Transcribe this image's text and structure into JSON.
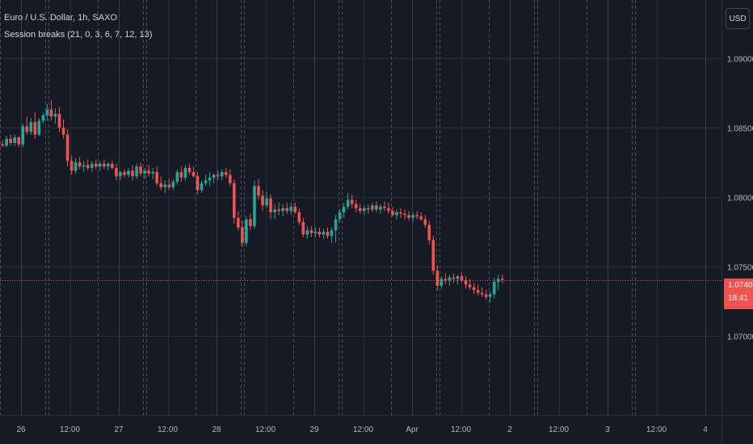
{
  "header": {
    "symbol_title": "Euro / U.S. Dollar, 1h, SAXO",
    "indicator_label": "Session breaks (21, 0, 3, 6, 7, 12, 13)"
  },
  "toolbar": {
    "currency_button": "USD"
  },
  "last_price": {
    "value": "1.07402",
    "countdown": "18:41"
  },
  "colors": {
    "background": "#161a25",
    "up": "#26a69a",
    "down": "#ef5350",
    "grid": "#2a2e39",
    "session_line": "#4a4e59",
    "price_line": "#f0524f",
    "axis_text": "#b2b5be"
  },
  "chart_data": {
    "type": "candlestick",
    "title": "Euro / U.S. Dollar, 1h, SAXO",
    "y_ticks": [
      1.09,
      1.085,
      1.08,
      1.075,
      1.07
    ],
    "y_tick_labels": [
      "1.09000",
      "1.08500",
      "1.08000",
      "1.07500",
      "1.07000"
    ],
    "ylim": [
      1.0643,
      1.0942
    ],
    "x_tick_labels": [
      "26",
      "12:00",
      "27",
      "12:00",
      "28",
      "12:00",
      "29",
      "12:00",
      "Apr",
      "12:00",
      "2",
      "12:00",
      "3",
      "12:00",
      "4"
    ],
    "last_price": 1.07402,
    "candles_per_day": 24,
    "session_breaks": true,
    "candles": [
      [
        1.0838,
        1.0843,
        1.0835,
        1.084
      ],
      [
        1.084,
        1.0841,
        1.0834,
        1.0836
      ],
      [
        1.0836,
        1.084,
        1.0834,
        1.0838
      ],
      [
        1.0838,
        1.0841,
        1.0836,
        1.0837
      ],
      [
        1.0837,
        1.0844,
        1.0836,
        1.0842
      ],
      [
        1.0842,
        1.0845,
        1.0837,
        1.0839
      ],
      [
        1.0839,
        1.0845,
        1.0837,
        1.0843
      ],
      [
        1.0843,
        1.0844,
        1.0836,
        1.0838
      ],
      [
        1.0838,
        1.0853,
        1.0836,
        1.0851
      ],
      [
        1.0851,
        1.0858,
        1.0845,
        1.0847
      ],
      [
        1.0847,
        1.0857,
        1.0845,
        1.0854
      ],
      [
        1.0854,
        1.0861,
        1.0842,
        1.0845
      ],
      [
        1.0845,
        1.0857,
        1.0844,
        1.0855
      ],
      [
        1.0855,
        1.0861,
        1.0853,
        1.0859
      ],
      [
        1.0859,
        1.0867,
        1.0855,
        1.0863
      ],
      [
        1.0863,
        1.087,
        1.0855,
        1.0858
      ],
      [
        1.0858,
        1.0864,
        1.0853,
        1.086
      ],
      [
        1.086,
        1.0865,
        1.0847,
        1.085
      ],
      [
        1.085,
        1.0856,
        1.0842,
        1.0845
      ],
      [
        1.0845,
        1.0849,
        1.0822,
        1.0826
      ],
      [
        1.0826,
        1.083,
        1.0816,
        1.0819
      ],
      [
        1.0819,
        1.0828,
        1.0817,
        1.0825
      ],
      [
        1.0825,
        1.0829,
        1.082,
        1.0822
      ],
      [
        1.0822,
        1.0826,
        1.0818,
        1.0823
      ],
      [
        1.0823,
        1.0827,
        1.0819,
        1.0821
      ],
      [
        1.0821,
        1.0826,
        1.0818,
        1.0824
      ],
      [
        1.0824,
        1.0827,
        1.082,
        1.0822
      ],
      [
        1.0822,
        1.0826,
        1.0819,
        1.0824
      ],
      [
        1.0824,
        1.0827,
        1.082,
        1.0822
      ],
      [
        1.0822,
        1.0825,
        1.0819,
        1.0824
      ],
      [
        1.0824,
        1.0826,
        1.082,
        1.0821
      ],
      [
        1.0821,
        1.0824,
        1.0812,
        1.0815
      ],
      [
        1.0815,
        1.0819,
        1.0812,
        1.0818
      ],
      [
        1.0818,
        1.082,
        1.0814,
        1.0816
      ],
      [
        1.0816,
        1.0821,
        1.0814,
        1.0819
      ],
      [
        1.0819,
        1.0823,
        1.0812,
        1.0815
      ],
      [
        1.0815,
        1.0824,
        1.0813,
        1.0822
      ],
      [
        1.0822,
        1.0825,
        1.0815,
        1.0817
      ],
      [
        1.0817,
        1.0821,
        1.0813,
        1.0819
      ],
      [
        1.0819,
        1.0823,
        1.0815,
        1.0817
      ],
      [
        1.0817,
        1.0821,
        1.0813,
        1.0818
      ],
      [
        1.0818,
        1.0822,
        1.0808,
        1.081
      ],
      [
        1.081,
        1.0815,
        1.0805,
        1.0807
      ],
      [
        1.0807,
        1.0812,
        1.0803,
        1.0809
      ],
      [
        1.0809,
        1.0813,
        1.0805,
        1.0807
      ],
      [
        1.0807,
        1.0813,
        1.0805,
        1.0811
      ],
      [
        1.0811,
        1.082,
        1.0809,
        1.0818
      ],
      [
        1.0818,
        1.0822,
        1.0811,
        1.0814
      ],
      [
        1.0814,
        1.0823,
        1.0812,
        1.0821
      ],
      [
        1.0821,
        1.0824,
        1.0816,
        1.0818
      ],
      [
        1.0818,
        1.0822,
        1.0814,
        1.0815
      ],
      [
        1.0815,
        1.0818,
        1.0802,
        1.0805
      ],
      [
        1.0805,
        1.0812,
        1.0803,
        1.081
      ],
      [
        1.081,
        1.0816,
        1.0808,
        1.0812
      ],
      [
        1.0812,
        1.0818,
        1.0808,
        1.0814
      ],
      [
        1.0814,
        1.0817,
        1.081,
        1.0816
      ],
      [
        1.0816,
        1.0819,
        1.0812,
        1.0815
      ],
      [
        1.0815,
        1.082,
        1.0812,
        1.0818
      ],
      [
        1.0818,
        1.0821,
        1.0814,
        1.0816
      ],
      [
        1.0816,
        1.082,
        1.0808,
        1.081
      ],
      [
        1.081,
        1.0813,
        1.0781,
        1.0785
      ],
      [
        1.0785,
        1.079,
        1.0776,
        1.0778
      ],
      [
        1.0778,
        1.0783,
        1.0764,
        1.0767
      ],
      [
        1.0767,
        1.0786,
        1.0765,
        1.0784
      ],
      [
        1.0784,
        1.0788,
        1.0776,
        1.0779
      ],
      [
        1.0779,
        1.0812,
        1.0777,
        1.0808
      ],
      [
        1.0808,
        1.0813,
        1.0798,
        1.0801
      ],
      [
        1.0801,
        1.0805,
        1.079,
        1.0794
      ],
      [
        1.0794,
        1.0804,
        1.0792,
        1.0799
      ],
      [
        1.0799,
        1.0802,
        1.0784,
        1.0789
      ],
      [
        1.0789,
        1.0795,
        1.0784,
        1.0791
      ],
      [
        1.0791,
        1.0796,
        1.0787,
        1.079
      ],
      [
        1.079,
        1.0795,
        1.0786,
        1.0792
      ],
      [
        1.0792,
        1.0796,
        1.0788,
        1.079
      ],
      [
        1.079,
        1.0796,
        1.0787,
        1.0793
      ],
      [
        1.0793,
        1.0796,
        1.0788,
        1.0789
      ],
      [
        1.0789,
        1.0792,
        1.078,
        1.0782
      ],
      [
        1.0782,
        1.0785,
        1.0771,
        1.0773
      ],
      [
        1.0773,
        1.0779,
        1.077,
        1.0776
      ],
      [
        1.0776,
        1.0779,
        1.0771,
        1.0774
      ],
      [
        1.0774,
        1.0778,
        1.0771,
        1.0775
      ],
      [
        1.0775,
        1.0778,
        1.0771,
        1.0773
      ],
      [
        1.0773,
        1.0777,
        1.077,
        1.0775
      ],
      [
        1.0775,
        1.0778,
        1.077,
        1.0772
      ],
      [
        1.0772,
        1.0778,
        1.0767,
        1.0776
      ],
      [
        1.0776,
        1.0787,
        1.0767,
        1.0784
      ],
      [
        1.0784,
        1.0791,
        1.0782,
        1.0789
      ],
      [
        1.0789,
        1.0796,
        1.0785,
        1.0793
      ],
      [
        1.0793,
        1.0803,
        1.0791,
        1.0798
      ],
      [
        1.0798,
        1.0802,
        1.0792,
        1.0795
      ],
      [
        1.0795,
        1.0798,
        1.0789,
        1.0792
      ],
      [
        1.0792,
        1.0795,
        1.0788,
        1.079
      ],
      [
        1.079,
        1.0794,
        1.0787,
        1.0792
      ],
      [
        1.0792,
        1.0795,
        1.0788,
        1.0791
      ],
      [
        1.0791,
        1.0796,
        1.0789,
        1.0794
      ],
      [
        1.0794,
        1.0797,
        1.0789,
        1.0791
      ],
      [
        1.0791,
        1.0795,
        1.0788,
        1.0793
      ],
      [
        1.0793,
        1.0797,
        1.079,
        1.0792
      ],
      [
        1.0792,
        1.0796,
        1.0788,
        1.079
      ],
      [
        1.079,
        1.0793,
        1.0786,
        1.0787
      ],
      [
        1.0787,
        1.0791,
        1.0784,
        1.0789
      ],
      [
        1.0789,
        1.0792,
        1.0785,
        1.0788
      ],
      [
        1.0788,
        1.0791,
        1.0784,
        1.0787
      ],
      [
        1.0787,
        1.079,
        1.0783,
        1.0785
      ],
      [
        1.0785,
        1.0789,
        1.0782,
        1.0787
      ],
      [
        1.0787,
        1.079,
        1.0784,
        1.0786
      ],
      [
        1.0786,
        1.0789,
        1.0783,
        1.0784
      ],
      [
        1.0784,
        1.0787,
        1.0778,
        1.078
      ],
      [
        1.078,
        1.0783,
        1.0766,
        1.0769
      ],
      [
        1.0769,
        1.0772,
        1.0744,
        1.0747
      ],
      [
        1.0747,
        1.0751,
        1.0733,
        1.0736
      ],
      [
        1.0736,
        1.0743,
        1.0734,
        1.0741
      ],
      [
        1.0741,
        1.0745,
        1.0737,
        1.074
      ],
      [
        1.074,
        1.0744,
        1.0736,
        1.0742
      ],
      [
        1.0742,
        1.0745,
        1.0738,
        1.0741
      ],
      [
        1.0741,
        1.0744,
        1.0737,
        1.0743
      ],
      [
        1.0743,
        1.0746,
        1.0738,
        1.074
      ],
      [
        1.074,
        1.0743,
        1.0734,
        1.0737
      ],
      [
        1.0737,
        1.0741,
        1.0733,
        1.0735
      ],
      [
        1.0735,
        1.0738,
        1.073,
        1.0733
      ],
      [
        1.0733,
        1.0737,
        1.0729,
        1.0731
      ],
      [
        1.0731,
        1.0735,
        1.0728,
        1.073
      ],
      [
        1.073,
        1.0733,
        1.0726,
        1.0728
      ],
      [
        1.0728,
        1.0732,
        1.0724,
        1.073
      ],
      [
        1.073,
        1.0742,
        1.0727,
        1.0739
      ],
      [
        1.0739,
        1.0744,
        1.0733,
        1.0741
      ],
      [
        1.0741,
        1.0744,
        1.0738,
        1.074
      ]
    ]
  }
}
